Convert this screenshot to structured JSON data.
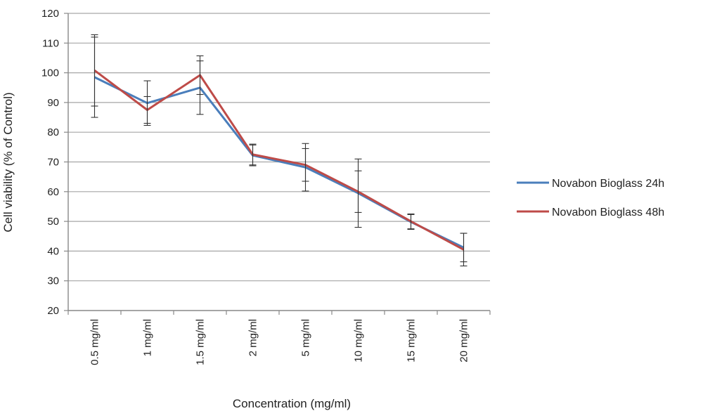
{
  "chart_data": {
    "type": "line",
    "title": "",
    "xlabel": "Concentration (mg/ml)",
    "ylabel": "Cell viability (% of Control)",
    "ylim": [
      20,
      120
    ],
    "yticks": [
      20,
      30,
      40,
      50,
      60,
      70,
      80,
      90,
      100,
      110,
      120
    ],
    "grid": true,
    "legend_position": "right",
    "categories": [
      "0.5 mg/ml",
      "1 mg/ml",
      "1.5 mg/ml",
      "2 mg/ml",
      "5 mg/ml",
      "10 mg/ml",
      "15 mg/ml",
      "20 mg/ml"
    ],
    "series": [
      {
        "name": "Novabon Bioglass 24h",
        "color": "#4a7ebb",
        "values": [
          98.5,
          89.8,
          95.0,
          72.2,
          68.2,
          59.5,
          49.8,
          41.2
        ],
        "error": [
          13.5,
          7.5,
          9.0,
          3.5,
          8.0,
          11.5,
          2.5,
          4.8
        ]
      },
      {
        "name": "Novabon Bioglass 48h",
        "color": "#be4b48",
        "values": [
          100.8,
          87.5,
          99.2,
          72.5,
          69.0,
          60.0,
          50.0,
          40.5
        ],
        "error": [
          12.0,
          4.5,
          6.5,
          3.5,
          5.5,
          7.0,
          2.5,
          5.5
        ]
      }
    ]
  }
}
